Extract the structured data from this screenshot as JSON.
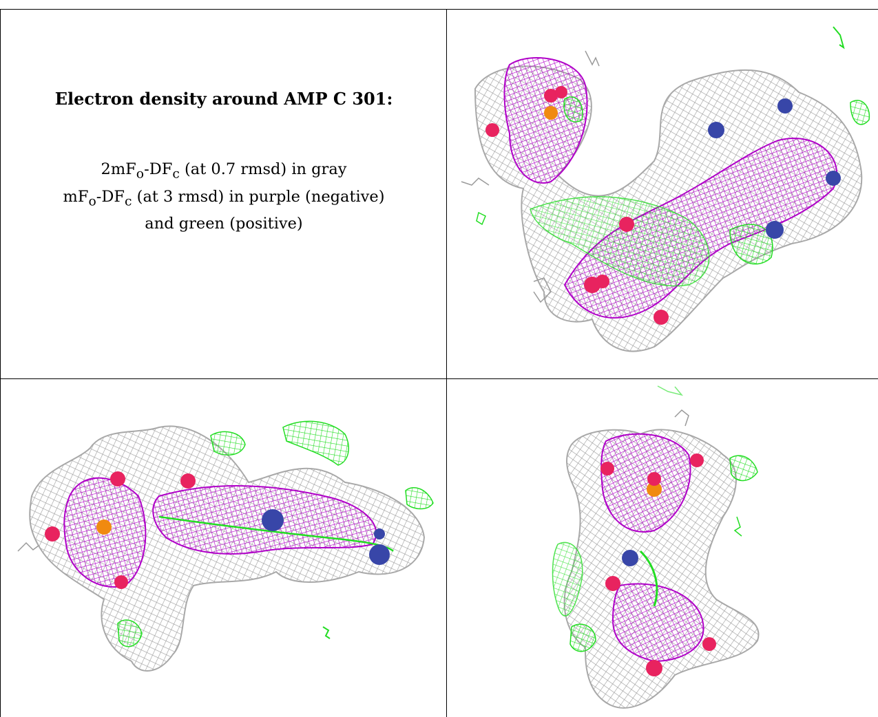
{
  "caption": {
    "title": "Electron density around AMP C 301:",
    "line1": {
      "prefix": "2mF",
      "sub1": "o",
      "middle": "-DF",
      "sub2": "c",
      "suffix": " (at 0.7 rmsd) in gray"
    },
    "line2": {
      "prefix": "mF",
      "sub1": "o",
      "middle": "-DF",
      "sub2": "c",
      "suffix": " (at 3 rmsd) in purple (negative)"
    },
    "line3": "and green (positive)"
  },
  "colors": {
    "mesh_2fofc": "#9a9a9a",
    "mesh_negative": "#b000c8",
    "mesh_positive": "#22dd22",
    "atom_oxygen": "#e8235f",
    "atom_nitrogen": "#3846a8",
    "atom_phosphorus": "#f08a10"
  }
}
